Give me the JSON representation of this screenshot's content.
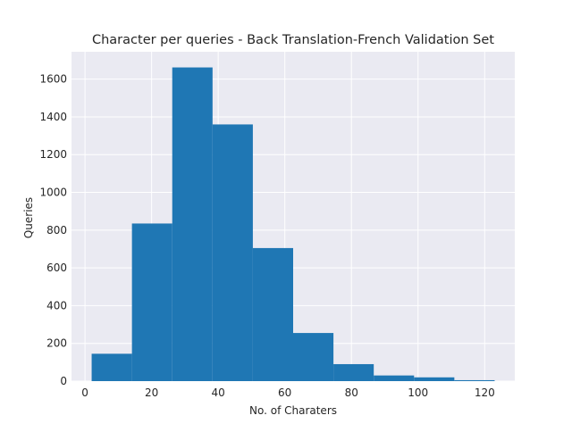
{
  "chart_data": {
    "type": "bar",
    "subtype": "histogram",
    "title": "Character per queries - Back Translation-French Validation Set",
    "xlabel": "No. of Charaters",
    "ylabel": "Queries",
    "bins": [
      {
        "start": 2.0,
        "end": 14.1,
        "value": 145
      },
      {
        "start": 14.1,
        "end": 26.2,
        "value": 835
      },
      {
        "start": 26.2,
        "end": 38.3,
        "value": 1662
      },
      {
        "start": 38.3,
        "end": 50.4,
        "value": 1360
      },
      {
        "start": 50.4,
        "end": 62.5,
        "value": 705
      },
      {
        "start": 62.5,
        "end": 74.6,
        "value": 255
      },
      {
        "start": 74.6,
        "end": 86.7,
        "value": 90
      },
      {
        "start": 86.7,
        "end": 98.8,
        "value": 30
      },
      {
        "start": 98.8,
        "end": 110.9,
        "value": 20
      },
      {
        "start": 110.9,
        "end": 123.0,
        "value": 5
      }
    ],
    "xlim": [
      -4.05,
      129.05
    ],
    "ylim": [
      0,
      1745
    ],
    "xticks": [
      0,
      20,
      40,
      60,
      80,
      100,
      120
    ],
    "yticks": [
      0,
      200,
      400,
      600,
      800,
      1000,
      1200,
      1400,
      1600
    ],
    "grid": true,
    "colors": {
      "bar": "#1f77b4",
      "plot_background": "#eaeaf2",
      "grid": "#ffffff"
    }
  }
}
